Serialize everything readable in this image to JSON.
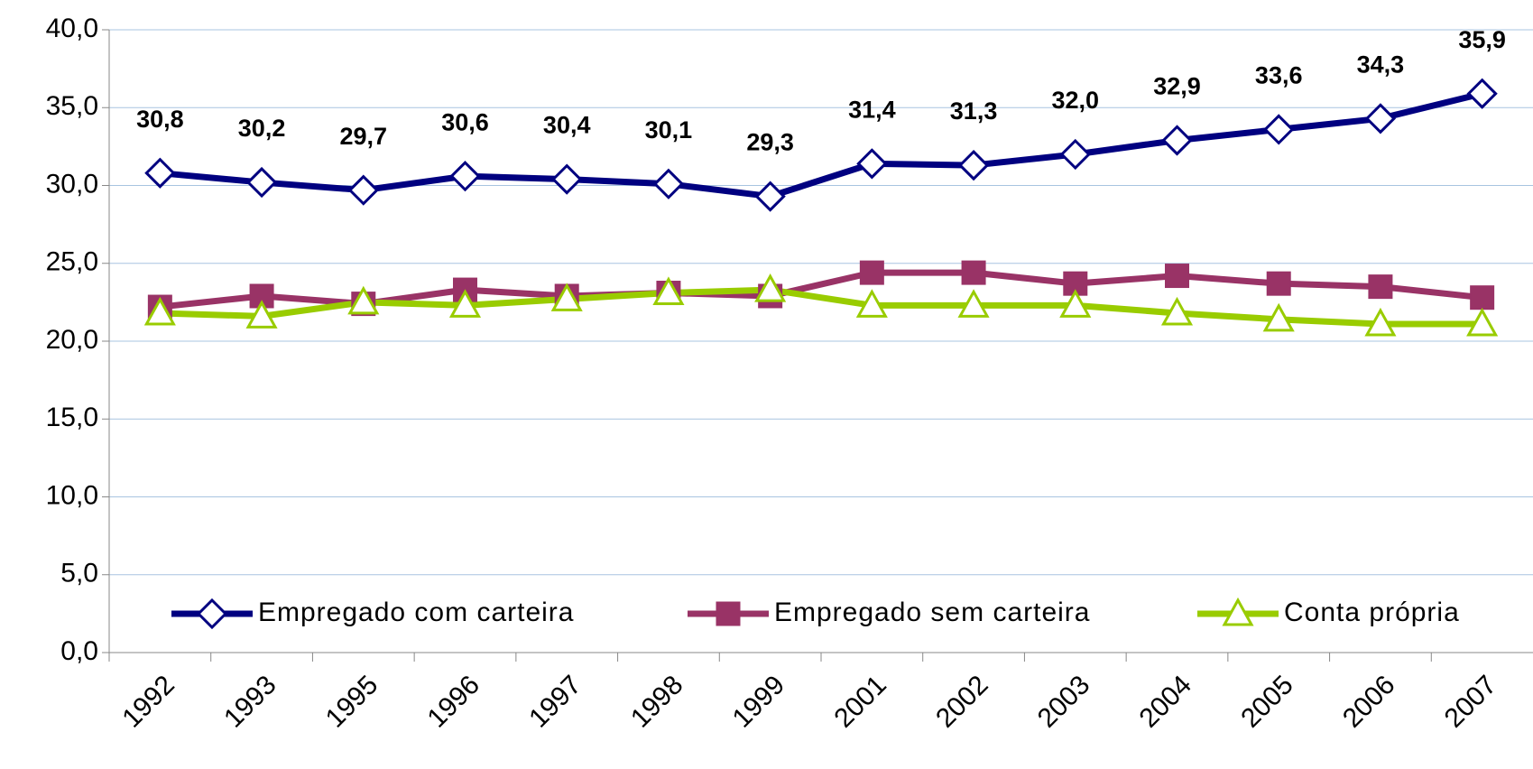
{
  "chart_data": {
    "type": "line",
    "categories": [
      "1992",
      "1993",
      "1995",
      "1996",
      "1997",
      "1998",
      "1999",
      "2001",
      "2002",
      "2003",
      "2004",
      "2005",
      "2006",
      "2007"
    ],
    "series": [
      {
        "name": "Empregado com carteira",
        "color": "#000080",
        "marker": "diamond",
        "values": [
          30.8,
          30.2,
          29.7,
          30.6,
          30.4,
          30.1,
          29.3,
          31.4,
          31.3,
          32.0,
          32.9,
          33.6,
          34.3,
          35.9
        ],
        "value_labels": [
          "30,8",
          "30,2",
          "29,7",
          "30,6",
          "30,4",
          "30,1",
          "29,3",
          "31,4",
          "31,3",
          "32,0",
          "32,9",
          "33,6",
          "34,3",
          "35,9"
        ]
      },
      {
        "name": "Empregado sem carteira",
        "color": "#993366",
        "marker": "square",
        "values": [
          22.2,
          22.9,
          22.4,
          23.3,
          22.9,
          23.1,
          22.9,
          24.4,
          24.4,
          23.7,
          24.2,
          23.7,
          23.5,
          22.8
        ]
      },
      {
        "name": "Conta própria",
        "color": "#99cc00",
        "marker": "triangle",
        "values": [
          21.8,
          21.6,
          22.5,
          22.3,
          22.7,
          23.1,
          23.3,
          22.3,
          22.3,
          22.3,
          21.8,
          21.4,
          21.1,
          21.1
        ]
      }
    ],
    "ylim": [
      0,
      40
    ],
    "yticks": [
      {
        "value": 0,
        "label": "0,0"
      },
      {
        "value": 5,
        "label": "5,0"
      },
      {
        "value": 10,
        "label": "10,0"
      },
      {
        "value": 15,
        "label": "15,0"
      },
      {
        "value": 20,
        "label": "20,0"
      },
      {
        "value": 25,
        "label": "25,0"
      },
      {
        "value": 30,
        "label": "30,0"
      },
      {
        "value": 35,
        "label": "35,0"
      },
      {
        "value": 40,
        "label": "40,0"
      }
    ],
    "grid": true
  }
}
